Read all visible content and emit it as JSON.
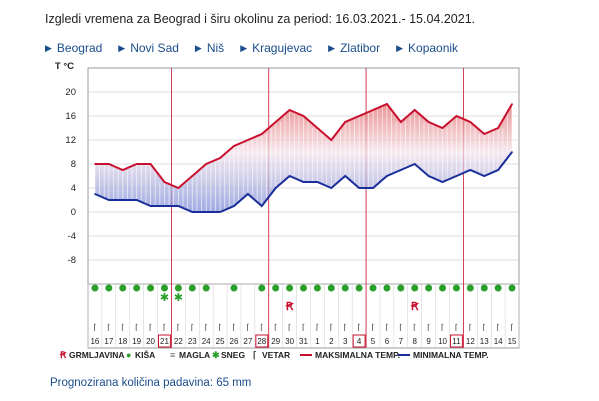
{
  "title": "Izgledi vremena za Beograd i širu okolinu za period: 16.03.2021.- 15.04.2021.",
  "cities": [
    "Beograd",
    "Novi Sad",
    "Niš",
    "Kragujevac",
    "Zlatibor",
    "Kopaonik"
  ],
  "colors": {
    "max": "#c8102e",
    "min": "#1a2f99",
    "rain": "#2aa02a",
    "snow": "#2aa02a",
    "thunder": "#c8102e",
    "accent": "#c8102e",
    "link": "#1a4d8c"
  },
  "chart_data": {
    "type": "line",
    "ylabel": "T °C",
    "yticks": [
      20,
      16,
      12,
      8,
      4,
      0,
      -4,
      -8
    ],
    "ylim": [
      -12,
      24
    ],
    "days": [
      "16",
      "17",
      "18",
      "19",
      "20",
      "21",
      "22",
      "23",
      "24",
      "25",
      "26",
      "27",
      "28",
      "29",
      "30",
      "31",
      "1",
      "2",
      "3",
      "4",
      "5",
      "6",
      "7",
      "8",
      "9",
      "10",
      "11",
      "12",
      "13",
      "14",
      "15"
    ],
    "boxed_days": [
      "21",
      "28",
      "4",
      "11"
    ],
    "series": [
      {
        "name": "MAKSIMALNA TEMP.",
        "values": [
          8,
          8,
          7,
          8,
          8,
          5,
          4,
          6,
          8,
          9,
          11,
          12,
          13,
          15,
          17,
          16,
          14,
          12,
          15,
          16,
          17,
          18,
          15,
          17,
          15,
          14,
          16,
          15,
          13,
          14,
          18
        ]
      },
      {
        "name": "MINIMALNA TEMP.",
        "values": [
          3,
          2,
          2,
          2,
          1,
          1,
          1,
          0,
          0,
          0,
          1,
          3,
          1,
          4,
          6,
          5,
          5,
          4,
          6,
          4,
          4,
          6,
          7,
          8,
          6,
          5,
          6,
          7,
          6,
          7,
          10
        ]
      }
    ],
    "weather": {
      "rain": [
        0,
        1,
        2,
        3,
        4,
        5,
        6,
        7,
        8,
        10,
        12,
        13,
        14,
        15,
        16,
        17,
        18,
        19,
        20,
        21,
        22,
        23,
        24,
        25,
        26,
        27,
        28,
        29,
        30
      ],
      "snow": [
        5,
        6
      ],
      "thunder": [
        14,
        23
      ],
      "wind": [
        0,
        1,
        2,
        3,
        4,
        5,
        6,
        7,
        8,
        9,
        10,
        11,
        12,
        13,
        14,
        15,
        16,
        17,
        18,
        19,
        20,
        21,
        22,
        23,
        24,
        25,
        26,
        27,
        28,
        29,
        30
      ]
    },
    "legend": [
      "GRMLJAVINA",
      "KIŠA",
      "MAGLA",
      "SNEG",
      "VETAR",
      "MAKSIMALNA TEMP.",
      "MINIMALNA TEMP."
    ]
  },
  "footer": "Prognozirana količina padavina:  65  mm"
}
